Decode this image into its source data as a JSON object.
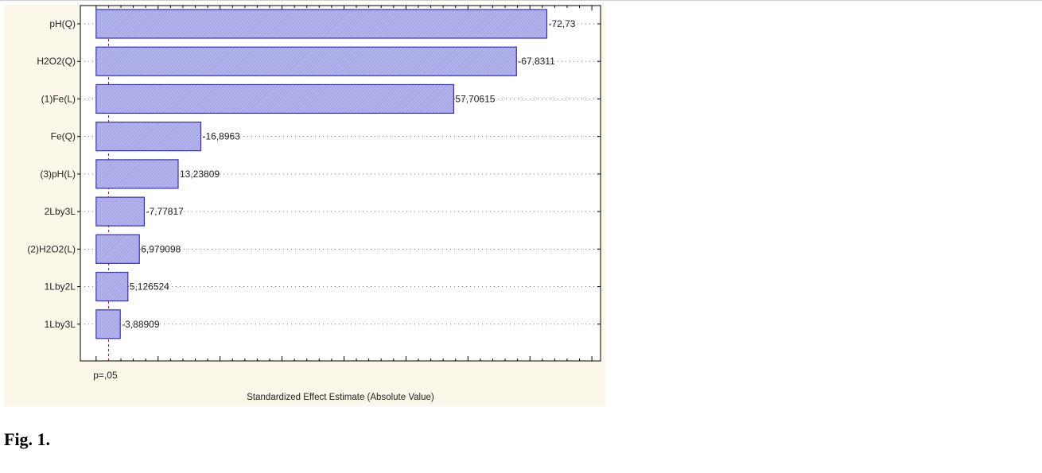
{
  "figure": {
    "caption": "Fig. 1."
  },
  "chart_data": {
    "type": "bar",
    "orientation": "horizontal",
    "categories": [
      "pH(Q)",
      "H2O2(Q)",
      "(1)Fe(L)",
      "Fe(Q)",
      "(3)pH(L)",
      "2Lby3L",
      "(2)H2O2(L)",
      "1Lby2L",
      "1Lby3L"
    ],
    "values": [
      72.73,
      67.8311,
      57.70615,
      16.8963,
      13.23809,
      7.77817,
      6.979098,
      5.126524,
      3.88909
    ],
    "data_labels": [
      "-72,73",
      "-67,8311",
      "57,70615",
      "-16,8963",
      "13,23809",
      "-7,77817",
      "6,979098",
      "5,126524",
      "-3,88909"
    ],
    "xlabel": "Standardized Effect Estimate (Absolute Value)",
    "ylabel": "",
    "xlim": [
      -2.55,
      81.4
    ],
    "reference_line": {
      "value": 2.0,
      "label": "p=,05"
    },
    "grid": true,
    "bar_color": "#a9a9e6",
    "bar_edge_color": "#3030c0"
  }
}
